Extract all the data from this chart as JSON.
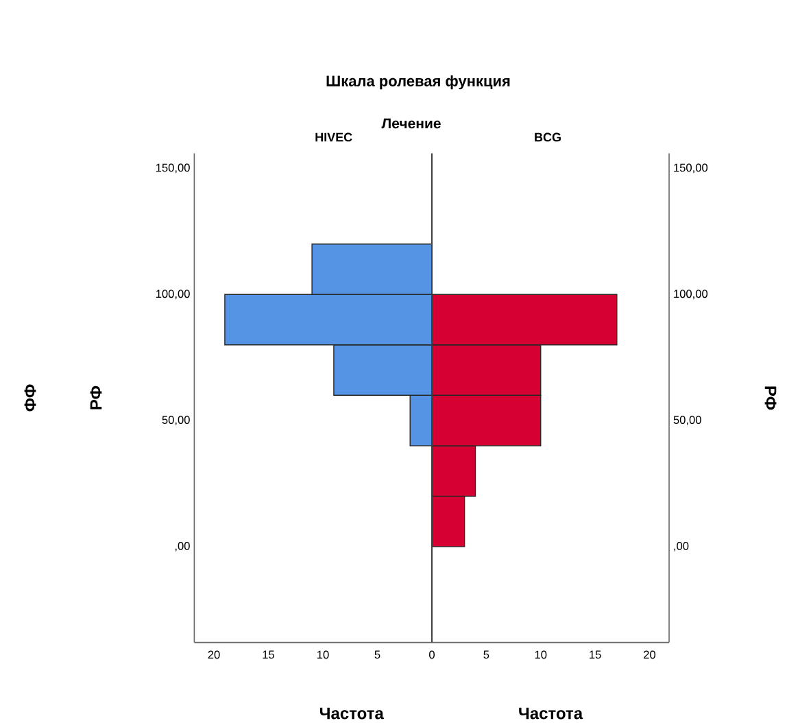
{
  "chart_data": [
    {
      "type": "histogram",
      "orientation": "horizontal",
      "title": "Шкала ролевая функция",
      "subtitle": "Лечение",
      "ylabel": "РФ",
      "xlabel": "Частота",
      "annotations": [
        "ФФ"
      ],
      "bins": [
        0,
        20,
        40,
        60,
        80,
        100,
        120
      ],
      "series": [
        {
          "name": "HIVEC",
          "color": "#5594e4",
          "values": [
            0,
            0,
            2,
            9,
            19,
            11
          ]
        }
      ],
      "xlim": [
        21.8,
        0
      ],
      "xticks": [
        20,
        15,
        10,
        5,
        0
      ],
      "ylim": [
        -38,
        156
      ],
      "yticks": [
        {
          "value": 0,
          "label": ",00"
        },
        {
          "value": 50,
          "label": "50,00"
        },
        {
          "value": 100,
          "label": "100,00"
        },
        {
          "value": 150,
          "label": "150,00"
        }
      ]
    },
    {
      "type": "histogram",
      "orientation": "horizontal",
      "ylabel": "РФ",
      "xlabel": "Частота",
      "bins": [
        0,
        20,
        40,
        60,
        80,
        100,
        120
      ],
      "series": [
        {
          "name": "BCG",
          "color": "#d70032",
          "values": [
            3,
            4,
            10,
            10,
            17,
            0
          ]
        }
      ],
      "xlim": [
        0,
        21.8
      ],
      "xticks": [
        5,
        10,
        15,
        20
      ],
      "ylim": [
        -38,
        156
      ],
      "yticks": [
        {
          "value": 0,
          "label": ",00"
        },
        {
          "value": 50,
          "label": "50,00"
        },
        {
          "value": 100,
          "label": "100,00"
        },
        {
          "value": 150,
          "label": "150,00"
        }
      ]
    }
  ]
}
